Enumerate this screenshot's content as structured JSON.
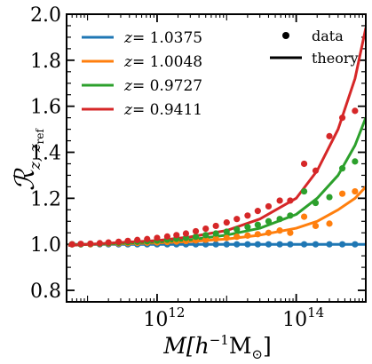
{
  "chart_data": {
    "type": "line",
    "xlabel_parts": {
      "main": "M[",
      "h": "h",
      "sup": "−1",
      "unit": "M",
      "sub": "⊙",
      "close": "]"
    },
    "ylabel_parts": {
      "main": "ℛ",
      "sub": "z, z",
      "subsub": "ref"
    },
    "x_scale": "log",
    "xlim": [
      50000000000.0,
      1000000000000000.0
    ],
    "ylim": [
      0.75,
      2.0
    ],
    "x_ticks": [
      {
        "value": 1000000000000.0,
        "base": "10",
        "exp": "12"
      },
      {
        "value": 100000000000000.0,
        "base": "10",
        "exp": "14"
      }
    ],
    "y_ticks": [
      {
        "value": 0.8,
        "label": "0.8"
      },
      {
        "value": 1.0,
        "label": "1.0"
      },
      {
        "value": 1.2,
        "label": "1.2"
      },
      {
        "value": 1.4,
        "label": "1.4"
      },
      {
        "value": 1.6,
        "label": "1.6"
      },
      {
        "value": 1.8,
        "label": "1.8"
      },
      {
        "value": 2.0,
        "label": "2.0"
      }
    ],
    "legend": {
      "series_placement": "top-left",
      "style_placement": "top-right",
      "style_entries": [
        {
          "kind": "dot",
          "label": "data"
        },
        {
          "kind": "line",
          "label": "theory"
        }
      ]
    },
    "series": [
      {
        "name": "z = 1.0375",
        "label_var": "z",
        "label_eq": "= 1.0375",
        "color": "#1f77b4",
        "theory_x": [
          55000000000.0,
          100000000000.0,
          300000000000.0,
          1000000000000.0,
          3000000000000.0,
          10000000000000.0,
          30000000000000.0,
          100000000000000.0,
          300000000000000.0,
          1000000000000000.0
        ],
        "theory_y": [
          1.0,
          1.0,
          1.0,
          1.0,
          1.0,
          1.0,
          1.0,
          1.0,
          1.0,
          1.0
        ],
        "data_x": [
          60000000000.0,
          80000000000.0,
          110000000000.0,
          150000000000.0,
          200000000000.0,
          280000000000.0,
          380000000000.0,
          520000000000.0,
          720000000000.0,
          1000000000000.0,
          1400000000000.0,
          1900000000000.0,
          2600000000000.0,
          3600000000000.0,
          5000000000000.0,
          7000000000000.0,
          10000000000000.0,
          14000000000000.0,
          20000000000000.0,
          28000000000000.0,
          40000000000000.0,
          58000000000000.0,
          82000000000000.0,
          130000000000000.0,
          190000000000000.0,
          300000000000000.0,
          460000000000000.0,
          700000000000000.0
        ],
        "data_y": [
          1.0,
          1.0,
          1.0,
          1.0,
          1.0,
          1.0,
          1.0,
          1.0,
          1.0,
          1.0,
          1.0,
          1.0,
          1.0,
          1.0,
          1.0,
          1.0,
          1.0,
          1.0,
          1.0,
          1.0,
          1.0,
          1.0,
          1.0,
          1.0,
          1.0,
          1.0,
          1.0,
          1.0
        ]
      },
      {
        "name": "z = 1.0048",
        "label_var": "z",
        "label_eq": "= 1.0048",
        "color": "#ff7f0e",
        "theory_x": [
          55000000000.0,
          100000000000.0,
          300000000000.0,
          1000000000000.0,
          3000000000000.0,
          10000000000000.0,
          30000000000000.0,
          100000000000000.0,
          200000000000000.0,
          400000000000000.0,
          700000000000000.0,
          1000000000000000.0
        ],
        "theory_y": [
          0.998,
          1.0,
          1.002,
          1.006,
          1.012,
          1.023,
          1.04,
          1.07,
          1.1,
          1.15,
          1.2,
          1.25
        ],
        "data_x": [
          60000000000.0,
          80000000000.0,
          110000000000.0,
          150000000000.0,
          200000000000.0,
          280000000000.0,
          380000000000.0,
          520000000000.0,
          720000000000.0,
          1000000000000.0,
          1400000000000.0,
          1900000000000.0,
          2600000000000.0,
          3600000000000.0,
          5000000000000.0,
          7000000000000.0,
          10000000000000.0,
          14000000000000.0,
          20000000000000.0,
          28000000000000.0,
          40000000000000.0,
          58000000000000.0,
          82000000000000.0,
          130000000000000.0,
          190000000000000.0,
          300000000000000.0,
          460000000000000.0,
          700000000000000.0
        ],
        "data_y": [
          1.0,
          1.0,
          1.0,
          1.002,
          1.003,
          1.004,
          1.005,
          1.006,
          1.007,
          1.008,
          1.01,
          1.012,
          1.014,
          1.017,
          1.02,
          1.024,
          1.028,
          1.033,
          1.038,
          1.044,
          1.05,
          1.06,
          1.05,
          1.12,
          1.08,
          1.09,
          1.22,
          1.23
        ]
      },
      {
        "name": "z = 0.9727",
        "label_var": "z",
        "label_eq": "= 0.9727",
        "color": "#2ca02c",
        "theory_x": [
          55000000000.0,
          100000000000.0,
          300000000000.0,
          1000000000000.0,
          3000000000000.0,
          10000000000000.0,
          30000000000000.0,
          100000000000000.0,
          200000000000000.0,
          400000000000000.0,
          700000000000000.0,
          1000000000000000.0
        ],
        "theory_y": [
          0.998,
          1.0,
          1.004,
          1.01,
          1.02,
          1.04,
          1.07,
          1.13,
          1.2,
          1.3,
          1.43,
          1.55
        ],
        "data_x": [
          60000000000.0,
          80000000000.0,
          110000000000.0,
          150000000000.0,
          200000000000.0,
          280000000000.0,
          380000000000.0,
          520000000000.0,
          720000000000.0,
          1000000000000.0,
          1400000000000.0,
          1900000000000.0,
          2600000000000.0,
          3600000000000.0,
          5000000000000.0,
          7000000000000.0,
          10000000000000.0,
          14000000000000.0,
          20000000000000.0,
          28000000000000.0,
          40000000000000.0,
          58000000000000.0,
          82000000000000.0,
          130000000000000.0,
          190000000000000.0,
          300000000000000.0,
          460000000000000.0,
          700000000000000.0
        ],
        "data_y": [
          1.0,
          1.0,
          1.002,
          1.003,
          1.005,
          1.007,
          1.009,
          1.011,
          1.013,
          1.016,
          1.02,
          1.024,
          1.028,
          1.033,
          1.04,
          1.047,
          1.055,
          1.065,
          1.075,
          1.085,
          1.1,
          1.11,
          1.125,
          1.23,
          1.18,
          1.205,
          1.33,
          1.36
        ]
      },
      {
        "name": "z = 0.9411",
        "label_var": "z",
        "label_eq": "= 0.9411",
        "color": "#d62728",
        "theory_x": [
          55000000000.0,
          100000000000.0,
          300000000000.0,
          1000000000000.0,
          3000000000000.0,
          10000000000000.0,
          30000000000000.0,
          100000000000000.0,
          200000000000000.0,
          400000000000000.0,
          700000000000000.0,
          1000000000000000.0
        ],
        "theory_y": [
          0.995,
          1.0,
          1.008,
          1.016,
          1.032,
          1.06,
          1.11,
          1.2,
          1.32,
          1.5,
          1.72,
          1.94
        ],
        "data_x": [
          60000000000.0,
          80000000000.0,
          110000000000.0,
          150000000000.0,
          200000000000.0,
          280000000000.0,
          380000000000.0,
          520000000000.0,
          720000000000.0,
          1000000000000.0,
          1400000000000.0,
          1900000000000.0,
          2600000000000.0,
          3600000000000.0,
          5000000000000.0,
          7000000000000.0,
          10000000000000.0,
          14000000000000.0,
          20000000000000.0,
          28000000000000.0,
          40000000000000.0,
          58000000000000.0,
          82000000000000.0,
          130000000000000.0,
          190000000000000.0,
          300000000000000.0,
          460000000000000.0,
          700000000000000.0
        ],
        "data_y": [
          1.0,
          1.002,
          1.003,
          1.005,
          1.008,
          1.011,
          1.015,
          1.019,
          1.023,
          1.028,
          1.034,
          1.04,
          1.047,
          1.057,
          1.068,
          1.08,
          1.095,
          1.11,
          1.125,
          1.145,
          1.165,
          1.19,
          1.19,
          1.35,
          1.32,
          1.47,
          1.55,
          1.58
        ]
      }
    ]
  }
}
